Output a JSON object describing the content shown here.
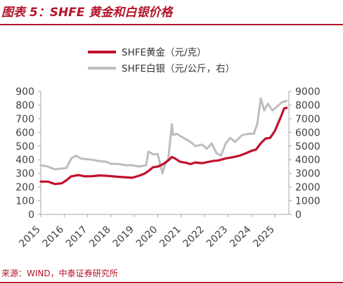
{
  "figure": {
    "title": "图表 5：SHFE 黄金和白银价格",
    "source": "来源：WIND，中泰证券研究所",
    "accent_color": "#b3152a"
  },
  "chart_data": {
    "type": "line",
    "title": "图表 5：SHFE 黄金和白银价格",
    "legend_position": "top-center",
    "grid": false,
    "x_ticks": [
      "2015",
      "2016",
      "2017",
      "2018",
      "2019",
      "2020",
      "2021",
      "2022",
      "2023",
      "2024",
      "2025"
    ],
    "x_range": [
      2015.0,
      2025.6
    ],
    "y_left": {
      "ylim": [
        0,
        900
      ],
      "ticks": [
        0,
        100,
        200,
        300,
        400,
        500,
        600,
        700,
        800,
        900
      ]
    },
    "y_right": {
      "ylim": [
        0,
        9000
      ],
      "ticks": [
        0,
        1000,
        2000,
        3000,
        4000,
        5000,
        6000,
        7000,
        8000,
        9000
      ]
    },
    "series": [
      {
        "name": "SHFE黄金（元/克）",
        "axis": "left",
        "color": "#c0102e",
        "x": [
          2015.0,
          2015.3,
          2015.6,
          2015.9,
          2016.1,
          2016.3,
          2016.6,
          2016.9,
          2017.2,
          2017.5,
          2017.8,
          2018.0,
          2018.3,
          2018.6,
          2018.9,
          2019.2,
          2019.45,
          2019.6,
          2019.8,
          2020.0,
          2020.2,
          2020.45,
          2020.6,
          2020.75,
          2020.95,
          2021.2,
          2021.4,
          2021.6,
          2021.9,
          2022.2,
          2022.4,
          2022.6,
          2022.9,
          2023.2,
          2023.5,
          2023.8,
          2024.0,
          2024.2,
          2024.4,
          2024.6,
          2024.8,
          2025.0,
          2025.2,
          2025.4,
          2025.5
        ],
        "y": [
          240,
          240,
          222,
          228,
          250,
          278,
          288,
          278,
          280,
          285,
          283,
          280,
          275,
          272,
          268,
          283,
          300,
          318,
          345,
          350,
          365,
          395,
          420,
          408,
          385,
          378,
          368,
          380,
          375,
          385,
          392,
          395,
          410,
          418,
          430,
          450,
          465,
          475,
          520,
          555,
          560,
          610,
          690,
          775,
          780
        ]
      },
      {
        "name": "SHFE白银（元/公斤，右）",
        "axis": "right",
        "color": "#bdbdbd",
        "x": [
          2015.0,
          2015.3,
          2015.6,
          2015.9,
          2016.1,
          2016.3,
          2016.5,
          2016.7,
          2016.9,
          2017.2,
          2017.5,
          2017.8,
          2018.0,
          2018.3,
          2018.6,
          2018.9,
          2019.2,
          2019.5,
          2019.6,
          2019.8,
          2020.0,
          2020.2,
          2020.3,
          2020.45,
          2020.6,
          2020.65,
          2020.8,
          2021.0,
          2021.2,
          2021.4,
          2021.6,
          2021.9,
          2022.1,
          2022.3,
          2022.5,
          2022.7,
          2022.9,
          2023.1,
          2023.3,
          2023.6,
          2023.9,
          2024.1,
          2024.25,
          2024.4,
          2024.55,
          2024.7,
          2024.9,
          2025.1,
          2025.3,
          2025.5
        ],
        "y": [
          3600,
          3500,
          3300,
          3350,
          3400,
          4100,
          4300,
          4100,
          4050,
          4000,
          3900,
          3850,
          3700,
          3700,
          3600,
          3600,
          3500,
          3600,
          4600,
          4400,
          4400,
          3000,
          3600,
          4100,
          6600,
          5800,
          5900,
          5700,
          5500,
          5300,
          5000,
          5100,
          4800,
          5200,
          4500,
          4300,
          5200,
          5600,
          5300,
          5800,
          5900,
          5900,
          6600,
          8500,
          7600,
          8100,
          7600,
          7900,
          8200,
          8300
        ]
      }
    ]
  }
}
